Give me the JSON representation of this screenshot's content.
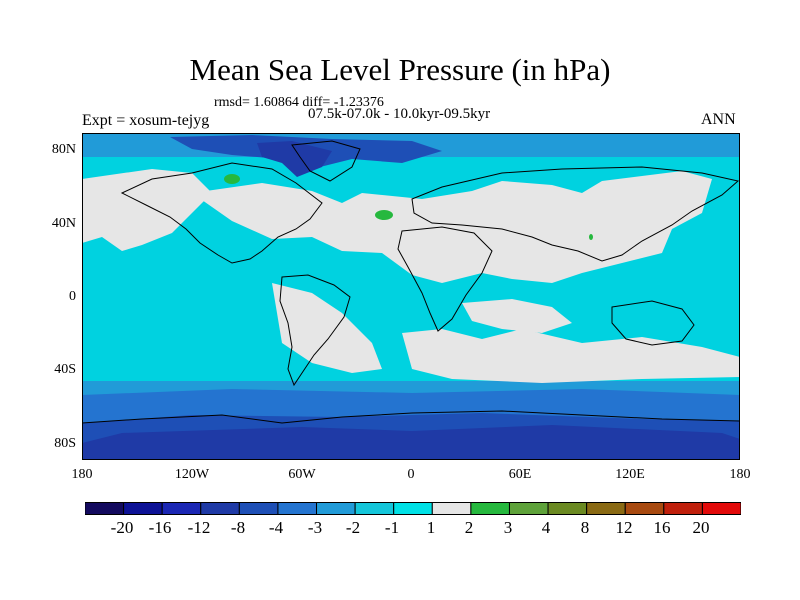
{
  "title": "Mean Sea Level Pressure (in hPa)",
  "stats": "rmsd= 1.60864 diff= -1.23376",
  "subtitle": "07.5k-07.0k - 10.0kyr-09.5kyr",
  "left_label": "Expt = xosum-tejyg",
  "right_label": "ANN",
  "lat_labels": [
    "80N",
    "40N",
    "0",
    "40S",
    "80S"
  ],
  "lon_labels": [
    "180",
    "120W",
    "60W",
    "0",
    "60E",
    "120E",
    "180"
  ],
  "colorbar": {
    "labels": [
      "-20",
      "-16",
      "-12",
      "-8",
      "-4",
      "-3",
      "-2",
      "-1",
      "1",
      "2",
      "3",
      "4",
      "8",
      "12",
      "16",
      "20"
    ],
    "colors": [
      "#130a5e",
      "#0d1296",
      "#1b27b4",
      "#1f3aa6",
      "#1e4fb6",
      "#2474d0",
      "#219bd8",
      "#14c6da",
      "#00e1e6",
      "#e6e6e6",
      "#26b83e",
      "#5ea23a",
      "#6b8a22",
      "#8a6a14",
      "#a84a10",
      "#c0200c",
      "#e20a0a"
    ]
  },
  "map_colors": {
    "band_neg8": "#1f3aa6",
    "band_neg4": "#1e4fb6",
    "band_neg3": "#2474d0",
    "band_neg2": "#219bd8",
    "band_neg1": "#00d2e0",
    "band_neutral": "#e6e6e6",
    "band_pos1": "#26b83e"
  }
}
